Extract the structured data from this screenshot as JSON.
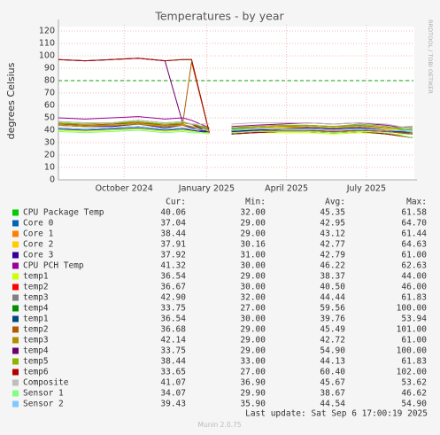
{
  "chart_data": {
    "type": "line",
    "title": "Temperatures - by year",
    "y_label": "degrees Celsius",
    "side_note": "RRDTOOL / TOBI OETIKER",
    "x": [
      0,
      30,
      60,
      90,
      120,
      140,
      150,
      170,
      180,
      195,
      220,
      250,
      280,
      310,
      340,
      370,
      399
    ],
    "xlim": [
      0,
      400
    ],
    "xticks": [
      {
        "value": 74,
        "label": "October 2024"
      },
      {
        "value": 167,
        "label": "January 2025"
      },
      {
        "value": 257,
        "label": "April 2025"
      },
      {
        "value": 347,
        "label": "July 2025"
      }
    ],
    "ylim": [
      0,
      125
    ],
    "yticks": [
      0,
      10,
      20,
      30,
      40,
      50,
      60,
      70,
      80,
      90,
      100,
      110,
      120
    ],
    "grid": true,
    "warning": 80,
    "warning_color": "#00aa00",
    "series": [
      {
        "name": "CPU Package Temp",
        "color": "#00CC00",
        "values": [
          46,
          44,
          45,
          47,
          44,
          46,
          45,
          40,
          null,
          41,
          42,
          43,
          44,
          43,
          44,
          42,
          40
        ]
      },
      {
        "name": "Core 0",
        "color": "#0066B3",
        "values": [
          44,
          43,
          44,
          45,
          43,
          44,
          42,
          38,
          null,
          39,
          40,
          41,
          42,
          41,
          42,
          40,
          37
        ]
      },
      {
        "name": "Core 1",
        "color": "#FF8000",
        "values": [
          45,
          44,
          44,
          46,
          43,
          45,
          43,
          39,
          null,
          40,
          41,
          42,
          43,
          42,
          43,
          41,
          38
        ]
      },
      {
        "name": "Core 2",
        "color": "#FFCC00",
        "values": [
          44,
          43,
          44,
          46,
          43,
          44,
          43,
          39,
          null,
          40,
          41,
          42,
          42,
          41,
          43,
          41,
          38
        ]
      },
      {
        "name": "Core 3",
        "color": "#330099",
        "values": [
          44,
          43,
          43,
          45,
          42,
          44,
          42,
          38,
          null,
          39,
          40,
          41,
          42,
          41,
          42,
          40,
          38
        ]
      },
      {
        "name": "CPU PCH Temp",
        "color": "#990099",
        "values": [
          50,
          49,
          50,
          51,
          49,
          50,
          48,
          42,
          null,
          43,
          44,
          45,
          46,
          45,
          46,
          44,
          41
        ]
      },
      {
        "name": "temp1",
        "color": "#CCFF00",
        "values": [
          40,
          39,
          40,
          41,
          39,
          40,
          39,
          37,
          null,
          37,
          38,
          38,
          38,
          37,
          38,
          37,
          37
        ]
      },
      {
        "name": "temp2",
        "color": "#FF0000",
        "values": [
          42,
          41,
          42,
          43,
          41,
          42,
          40,
          38,
          null,
          39,
          39,
          40,
          40,
          39,
          40,
          39,
          37
        ]
      },
      {
        "name": "temp3",
        "color": "#808080",
        "values": [
          47,
          46,
          46,
          48,
          46,
          47,
          45,
          41,
          null,
          42,
          43,
          44,
          44,
          43,
          44,
          42,
          43
        ]
      },
      {
        "name": "temp4",
        "color": "#008F00",
        "values": [
          97,
          96,
          97,
          98,
          96,
          97,
          97,
          38,
          null,
          37,
          38,
          39,
          39,
          38,
          39,
          37,
          34
        ]
      },
      {
        "name": "temp1",
        "color": "#00487D",
        "values": [
          41,
          40,
          41,
          42,
          40,
          41,
          40,
          38,
          null,
          39,
          39,
          40,
          40,
          39,
          40,
          39,
          37
        ]
      },
      {
        "name": "temp2",
        "color": "#B35A00",
        "values": [
          45,
          44,
          45,
          46,
          44,
          45,
          95,
          38,
          null,
          38,
          39,
          40,
          40,
          39,
          40,
          39,
          37
        ]
      },
      {
        "name": "temp3",
        "color": "#B38F00",
        "values": [
          44,
          43,
          44,
          45,
          43,
          44,
          43,
          41,
          null,
          42,
          42,
          43,
          43,
          42,
          43,
          42,
          42
        ]
      },
      {
        "name": "temp4",
        "color": "#6B006B",
        "values": [
          97,
          96,
          97,
          98,
          96,
          46,
          45,
          38,
          null,
          37,
          38,
          39,
          39,
          38,
          39,
          37,
          34
        ]
      },
      {
        "name": "temp5",
        "color": "#8FB300",
        "values": [
          46,
          45,
          46,
          47,
          45,
          46,
          45,
          42,
          null,
          42,
          43,
          44,
          44,
          43,
          45,
          43,
          38
        ]
      },
      {
        "name": "temp6",
        "color": "#B30000",
        "values": [
          97,
          96,
          97,
          98,
          96,
          97,
          97,
          38,
          null,
          37,
          38,
          39,
          39,
          38,
          39,
          37,
          34
        ]
      },
      {
        "name": "Composite",
        "color": "#BEBEBE",
        "values": [
          47,
          46,
          46,
          48,
          46,
          47,
          45,
          45,
          null,
          45,
          46,
          46,
          46,
          45,
          46,
          45,
          41
        ]
      },
      {
        "name": "Sensor 1",
        "color": "#80FF80",
        "values": [
          39,
          38,
          39,
          40,
          38,
          39,
          38,
          38,
          null,
          38,
          39,
          39,
          39,
          38,
          39,
          38,
          34
        ]
      },
      {
        "name": "Sensor 2",
        "color": "#80C9FF",
        "values": [
          42,
          41,
          42,
          43,
          41,
          42,
          41,
          40,
          null,
          40,
          41,
          41,
          41,
          40,
          41,
          40,
          39
        ]
      }
    ],
    "legend_table": {
      "headers": [
        "Cur:",
        "Min:",
        "Avg:",
        "Max:"
      ],
      "rows": [
        [
          "40.06",
          "32.00",
          "45.35",
          "61.58"
        ],
        [
          "37.04",
          "29.00",
          "42.95",
          "64.70"
        ],
        [
          "38.44",
          "29.00",
          "43.12",
          "61.44"
        ],
        [
          "37.91",
          "30.16",
          "42.77",
          "64.63"
        ],
        [
          "37.92",
          "31.00",
          "42.79",
          "61.00"
        ],
        [
          "41.32",
          "30.00",
          "46.22",
          "62.63"
        ],
        [
          "36.54",
          "29.00",
          "38.37",
          "44.00"
        ],
        [
          "36.67",
          "30.00",
          "40.50",
          "46.00"
        ],
        [
          "42.90",
          "32.00",
          "44.44",
          "61.83"
        ],
        [
          "33.75",
          "27.00",
          "59.56",
          "100.00"
        ],
        [
          "36.54",
          "30.00",
          "39.76",
          "53.94"
        ],
        [
          "36.68",
          "29.00",
          "45.49",
          "101.00"
        ],
        [
          "42.14",
          "29.00",
          "42.72",
          "61.00"
        ],
        [
          "33.75",
          "29.00",
          "54.90",
          "100.00"
        ],
        [
          "38.44",
          "33.00",
          "44.13",
          "61.83"
        ],
        [
          "33.65",
          "27.00",
          "60.40",
          "102.00"
        ],
        [
          "41.07",
          "36.90",
          "45.67",
          "53.62"
        ],
        [
          "34.07",
          "29.90",
          "38.67",
          "46.62"
        ],
        [
          "39.43",
          "35.90",
          "44.54",
          "54.90"
        ]
      ]
    },
    "last_update": "Last update: Sat Sep  6 17:00:19 2025",
    "footer": "Munin 2.0.75"
  }
}
